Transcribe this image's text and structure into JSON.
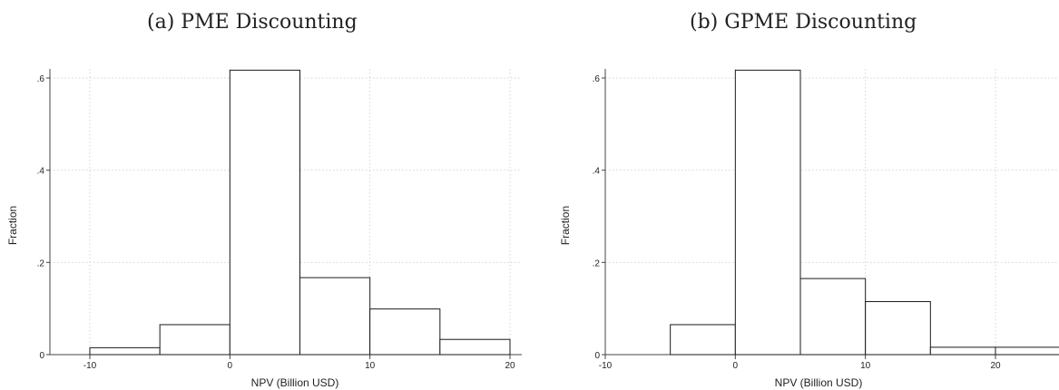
{
  "chart_data": [
    {
      "type": "bar",
      "title": "(a) PME Discounting",
      "xlabel": "NPV (Billion USD)",
      "ylabel": "Fraction",
      "xticks": [
        -10,
        0,
        10,
        20
      ],
      "xtick_labels": [
        "-10",
        "0",
        "10",
        "20"
      ],
      "yticks": [
        0,
        0.2,
        0.4,
        0.6
      ],
      "ytick_labels": [
        "0",
        ".2",
        ".4",
        ".6"
      ],
      "xlim": [
        -10,
        20
      ],
      "ylim": [
        0,
        0.6
      ],
      "grid": true,
      "bins": [
        {
          "x0": -10,
          "x1": -5,
          "value": 0.015
        },
        {
          "x0": -5,
          "x1": 0,
          "value": 0.065
        },
        {
          "x0": 0,
          "x1": 5,
          "value": 0.617
        },
        {
          "x0": 5,
          "x1": 10,
          "value": 0.167
        },
        {
          "x0": 10,
          "x1": 15,
          "value": 0.099
        },
        {
          "x0": 15,
          "x1": 20,
          "value": 0.033
        }
      ]
    },
    {
      "type": "bar",
      "title": "(b) GPME Discounting",
      "xlabel": "NPV (Billion USD)",
      "ylabel": "Fraction",
      "xticks": [
        -10,
        0,
        10,
        20
      ],
      "xtick_labels": [
        "-10",
        "0",
        "10",
        "20"
      ],
      "yticks": [
        0,
        0.2,
        0.4,
        0.6
      ],
      "ytick_labels": [
        "0",
        ".2",
        ".4",
        ".6"
      ],
      "xlim": [
        -10,
        25
      ],
      "ylim": [
        0,
        0.6
      ],
      "grid": true,
      "bins": [
        {
          "x0": -10,
          "x1": -5,
          "value": 0.0
        },
        {
          "x0": -5,
          "x1": 0,
          "value": 0.065
        },
        {
          "x0": 0,
          "x1": 5,
          "value": 0.617
        },
        {
          "x0": 5,
          "x1": 10,
          "value": 0.165
        },
        {
          "x0": 10,
          "x1": 15,
          "value": 0.115
        },
        {
          "x0": 15,
          "x1": 20,
          "value": 0.016
        },
        {
          "x0": 20,
          "x1": 25,
          "value": 0.016
        }
      ]
    }
  ]
}
